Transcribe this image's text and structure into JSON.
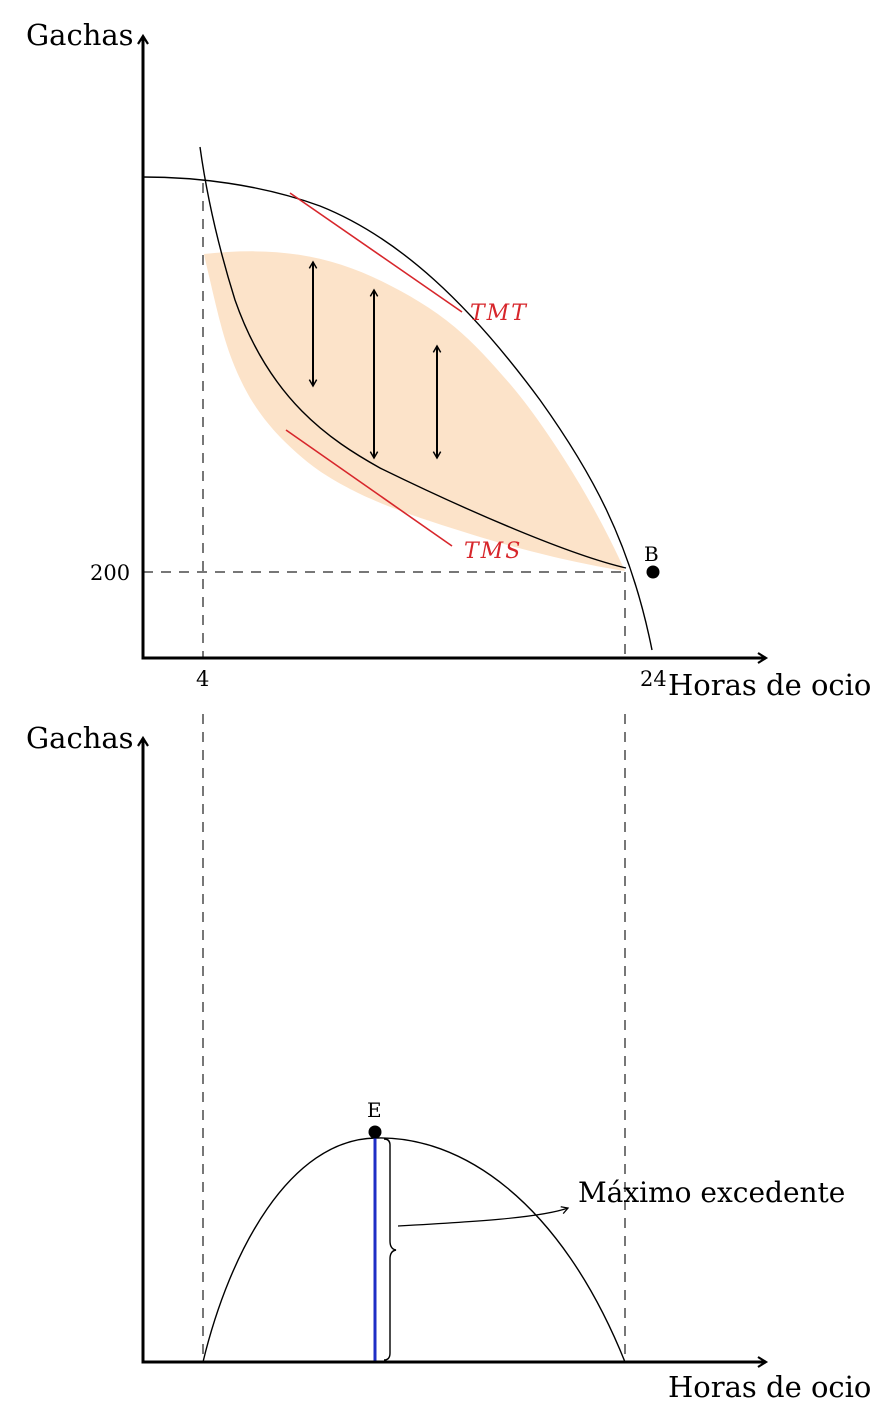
{
  "colors": {
    "fill": "#fce3c9",
    "tangent": "#d7262b",
    "excess": "#1f2fc6",
    "guide": "#777777",
    "ink": "#000000"
  },
  "top_panel": {
    "y_axis_label": "Gachas",
    "x_axis_label": "Horas de ocio",
    "y_tick": "200",
    "x_tick_left": "4",
    "x_tick_right": "24",
    "point_label": "B",
    "frontier_tangent_label": "TMT",
    "indifference_tangent_label": "TMS",
    "arrow_icon": "double-headed-vertical-arrow"
  },
  "bottom_panel": {
    "y_axis_label": "Gachas",
    "x_axis_label": "Horas de ocio",
    "point_label": "E",
    "annotation": "Máximo excedente",
    "brace_icon": "curly-brace"
  }
}
